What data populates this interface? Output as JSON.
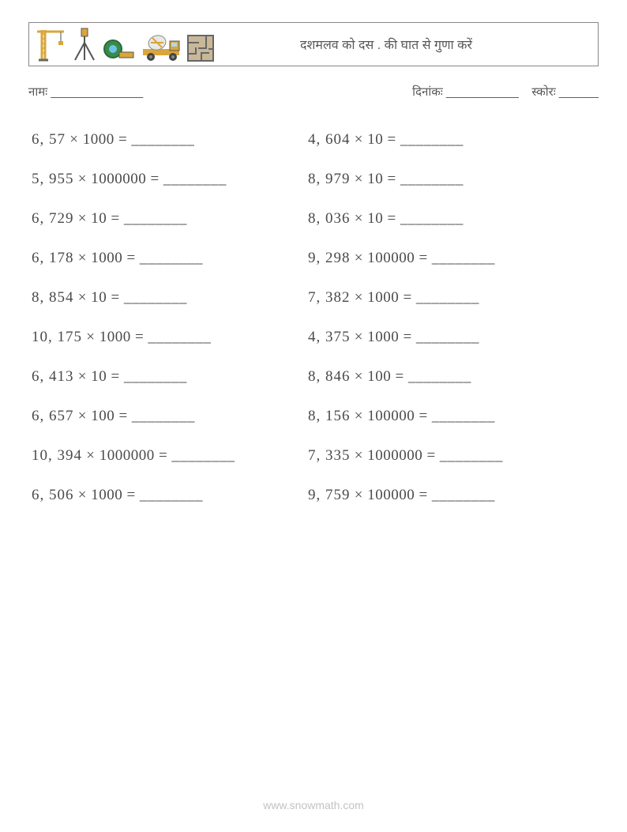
{
  "header": {
    "title": "दशमलव को दस . की घात से गुणा करें",
    "icons": [
      "crane-icon",
      "surveyor-icon",
      "tape-measure-icon",
      "cement-truck-icon",
      "maze-icon"
    ]
  },
  "meta": {
    "name_label": "नामः ______________",
    "date_label": "दिनांकः ___________",
    "score_label": "स्कोरः ______"
  },
  "blank": "________",
  "problems": {
    "left": [
      {
        "a": "6,57",
        "b": "1000"
      },
      {
        "a": "5,955",
        "b": "1000000"
      },
      {
        "a": "6,729",
        "b": "10"
      },
      {
        "a": "6,178",
        "b": "1000"
      },
      {
        "a": "8,854",
        "b": "10"
      },
      {
        "a": "10,175",
        "b": "1000"
      },
      {
        "a": "6,413",
        "b": "10"
      },
      {
        "a": "6,657",
        "b": "100"
      },
      {
        "a": "10,394",
        "b": "1000000"
      },
      {
        "a": "6,506",
        "b": "1000"
      }
    ],
    "right": [
      {
        "a": "4,604",
        "b": "10"
      },
      {
        "a": "8,979",
        "b": "10"
      },
      {
        "a": "8,036",
        "b": "10"
      },
      {
        "a": "9,298",
        "b": "100000"
      },
      {
        "a": "7,382",
        "b": "1000"
      },
      {
        "a": "4,375",
        "b": "1000"
      },
      {
        "a": "8,846",
        "b": "100"
      },
      {
        "a": "8,156",
        "b": "100000"
      },
      {
        "a": "7,335",
        "b": "1000000"
      },
      {
        "a": "9,759",
        "b": "100000"
      }
    ]
  },
  "footer": {
    "url": "www.snowmath.com"
  },
  "colors": {
    "text": "#4a4a4a",
    "border": "#888888",
    "footer": "#9a9a9a",
    "background": "#ffffff"
  },
  "typography": {
    "title_fontsize": 16,
    "meta_fontsize": 15,
    "problem_fontsize": 19,
    "footer_fontsize": 14,
    "problem_font": "serif"
  }
}
